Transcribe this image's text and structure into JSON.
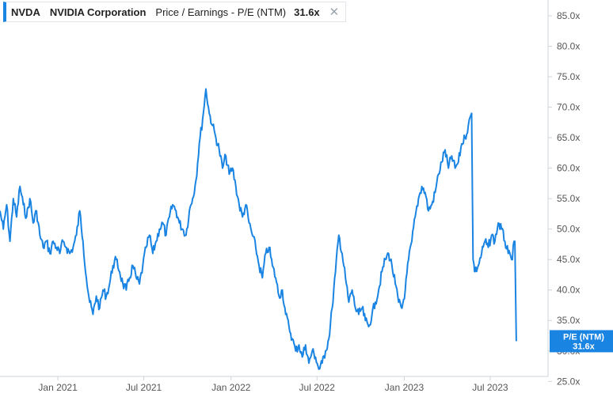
{
  "legend": {
    "ticker": "NVDA",
    "company": "NVIDIA Corporation",
    "metric": "Price / Earnings - P/E (NTM)",
    "value": "31.6x",
    "close_icon": "close-icon"
  },
  "badge": {
    "label": "P/E (NTM)",
    "value": "31.6x"
  },
  "colors": {
    "line": "#1a84e3",
    "badge": "#1a84e3",
    "axis": "#cfd5db"
  },
  "chart_data": {
    "type": "line",
    "title": "",
    "xlabel": "",
    "ylabel": "",
    "x_ticks": [
      "Jan 2021",
      "Jul 2021",
      "Jan 2022",
      "Jul 2022",
      "Jan 2023",
      "Jul 2023"
    ],
    "y_ticks": [
      "25.0x",
      "30.0x",
      "35.0x",
      "40.0x",
      "45.0x",
      "50.0x",
      "55.0x",
      "60.0x",
      "65.0x",
      "70.0x",
      "75.0x",
      "80.0x",
      "85.0x"
    ],
    "ylim": [
      24,
      85
    ],
    "xlim": [
      "2020-09-01",
      "2023-10-31"
    ],
    "grid": false,
    "series": [
      {
        "values": [
          [
            "2020-09-01",
            53
          ],
          [
            "2020-09-08",
            50
          ],
          [
            "2020-09-15",
            54
          ],
          [
            "2020-09-22",
            48
          ],
          [
            "2020-09-29",
            55
          ],
          [
            "2020-10-06",
            52
          ],
          [
            "2020-10-13",
            57
          ],
          [
            "2020-10-20",
            54
          ],
          [
            "2020-10-27",
            52
          ],
          [
            "2020-11-03",
            55
          ],
          [
            "2020-11-10",
            51
          ],
          [
            "2020-11-17",
            53
          ],
          [
            "2020-11-24",
            49
          ],
          [
            "2020-12-01",
            47
          ],
          [
            "2020-12-08",
            48
          ],
          [
            "2020-12-15",
            46
          ],
          [
            "2020-12-22",
            48
          ],
          [
            "2020-12-29",
            47
          ],
          [
            "2021-01-05",
            46
          ],
          [
            "2021-01-12",
            48
          ],
          [
            "2021-01-19",
            47
          ],
          [
            "2021-01-26",
            46
          ],
          [
            "2021-02-02",
            47
          ],
          [
            "2021-02-09",
            49
          ],
          [
            "2021-02-16",
            53
          ],
          [
            "2021-02-23",
            48
          ],
          [
            "2021-03-02",
            42
          ],
          [
            "2021-03-09",
            38
          ],
          [
            "2021-03-16",
            36
          ],
          [
            "2021-03-23",
            39
          ],
          [
            "2021-03-30",
            37
          ],
          [
            "2021-04-06",
            40
          ],
          [
            "2021-04-13",
            39
          ],
          [
            "2021-04-20",
            41
          ],
          [
            "2021-04-27",
            44
          ],
          [
            "2021-05-04",
            45
          ],
          [
            "2021-05-11",
            43
          ],
          [
            "2021-05-18",
            41
          ],
          [
            "2021-05-25",
            40
          ],
          [
            "2021-06-01",
            42
          ],
          [
            "2021-06-08",
            44
          ],
          [
            "2021-06-15",
            42
          ],
          [
            "2021-06-22",
            41
          ],
          [
            "2021-06-29",
            44
          ],
          [
            "2021-07-06",
            47
          ],
          [
            "2021-07-13",
            49
          ],
          [
            "2021-07-20",
            46
          ],
          [
            "2021-07-27",
            48
          ],
          [
            "2021-08-03",
            50
          ],
          [
            "2021-08-10",
            51
          ],
          [
            "2021-08-17",
            49
          ],
          [
            "2021-08-24",
            52
          ],
          [
            "2021-08-31",
            54
          ],
          [
            "2021-09-07",
            53
          ],
          [
            "2021-09-14",
            51
          ],
          [
            "2021-09-21",
            50
          ],
          [
            "2021-09-28",
            49
          ],
          [
            "2021-10-05",
            53
          ],
          [
            "2021-10-12",
            55
          ],
          [
            "2021-10-19",
            58
          ],
          [
            "2021-10-26",
            64
          ],
          [
            "2021-11-02",
            68
          ],
          [
            "2021-11-09",
            73
          ],
          [
            "2021-11-16",
            69
          ],
          [
            "2021-11-23",
            67
          ],
          [
            "2021-11-30",
            65
          ],
          [
            "2021-12-07",
            63
          ],
          [
            "2021-12-14",
            60
          ],
          [
            "2021-12-21",
            62
          ],
          [
            "2021-12-28",
            59
          ],
          [
            "2022-01-04",
            60
          ],
          [
            "2022-01-11",
            57
          ],
          [
            "2022-01-18",
            54
          ],
          [
            "2022-01-25",
            52
          ],
          [
            "2022-02-01",
            54
          ],
          [
            "2022-02-08",
            51
          ],
          [
            "2022-02-15",
            49
          ],
          [
            "2022-02-22",
            47
          ],
          [
            "2022-03-01",
            44
          ],
          [
            "2022-03-08",
            42
          ],
          [
            "2022-03-15",
            46
          ],
          [
            "2022-03-22",
            47
          ],
          [
            "2022-03-29",
            44
          ],
          [
            "2022-04-05",
            42
          ],
          [
            "2022-04-12",
            39
          ],
          [
            "2022-04-19",
            40
          ],
          [
            "2022-04-26",
            36
          ],
          [
            "2022-05-03",
            34
          ],
          [
            "2022-05-10",
            32
          ],
          [
            "2022-05-17",
            30
          ],
          [
            "2022-05-24",
            31
          ],
          [
            "2022-05-31",
            29
          ],
          [
            "2022-06-07",
            31
          ],
          [
            "2022-06-14",
            28
          ],
          [
            "2022-06-21",
            30
          ],
          [
            "2022-06-28",
            29
          ],
          [
            "2022-07-05",
            27
          ],
          [
            "2022-07-12",
            28
          ],
          [
            "2022-07-19",
            30
          ],
          [
            "2022-07-26",
            32
          ],
          [
            "2022-08-02",
            37
          ],
          [
            "2022-08-09",
            43
          ],
          [
            "2022-08-16",
            49
          ],
          [
            "2022-08-23",
            46
          ],
          [
            "2022-08-30",
            42
          ],
          [
            "2022-09-06",
            38
          ],
          [
            "2022-09-13",
            40
          ],
          [
            "2022-09-20",
            37
          ],
          [
            "2022-09-27",
            36
          ],
          [
            "2022-10-04",
            37
          ],
          [
            "2022-10-11",
            35
          ],
          [
            "2022-10-18",
            34
          ],
          [
            "2022-10-25",
            36
          ],
          [
            "2022-11-01",
            38
          ],
          [
            "2022-11-08",
            40
          ],
          [
            "2022-11-15",
            43
          ],
          [
            "2022-11-22",
            45
          ],
          [
            "2022-11-29",
            46
          ],
          [
            "2022-12-06",
            44
          ],
          [
            "2022-12-13",
            41
          ],
          [
            "2022-12-20",
            38
          ],
          [
            "2022-12-27",
            37
          ],
          [
            "2023-01-03",
            40
          ],
          [
            "2023-01-10",
            45
          ],
          [
            "2023-01-17",
            48
          ],
          [
            "2023-01-24",
            52
          ],
          [
            "2023-01-31",
            55
          ],
          [
            "2023-02-07",
            57
          ],
          [
            "2023-02-14",
            56
          ],
          [
            "2023-02-21",
            53
          ],
          [
            "2023-02-28",
            54
          ],
          [
            "2023-03-07",
            56
          ],
          [
            "2023-03-14",
            59
          ],
          [
            "2023-03-21",
            61
          ],
          [
            "2023-03-28",
            63
          ],
          [
            "2023-04-04",
            60
          ],
          [
            "2023-04-11",
            62
          ],
          [
            "2023-04-18",
            60
          ],
          [
            "2023-04-25",
            61
          ],
          [
            "2023-05-02",
            64
          ],
          [
            "2023-05-09",
            65
          ],
          [
            "2023-05-16",
            67
          ],
          [
            "2023-05-23",
            69
          ],
          [
            "2023-05-26",
            45
          ],
          [
            "2023-05-30",
            43
          ],
          [
            "2023-06-06",
            44
          ],
          [
            "2023-06-13",
            46
          ],
          [
            "2023-06-20",
            48
          ],
          [
            "2023-06-27",
            47
          ],
          [
            "2023-07-04",
            49
          ],
          [
            "2023-07-11",
            48
          ],
          [
            "2023-07-18",
            51
          ],
          [
            "2023-07-25",
            50
          ],
          [
            "2023-08-01",
            48
          ],
          [
            "2023-08-08",
            46
          ],
          [
            "2023-08-15",
            45
          ],
          [
            "2023-08-22",
            48
          ],
          [
            "2023-08-25",
            31.6
          ]
        ]
      }
    ]
  }
}
